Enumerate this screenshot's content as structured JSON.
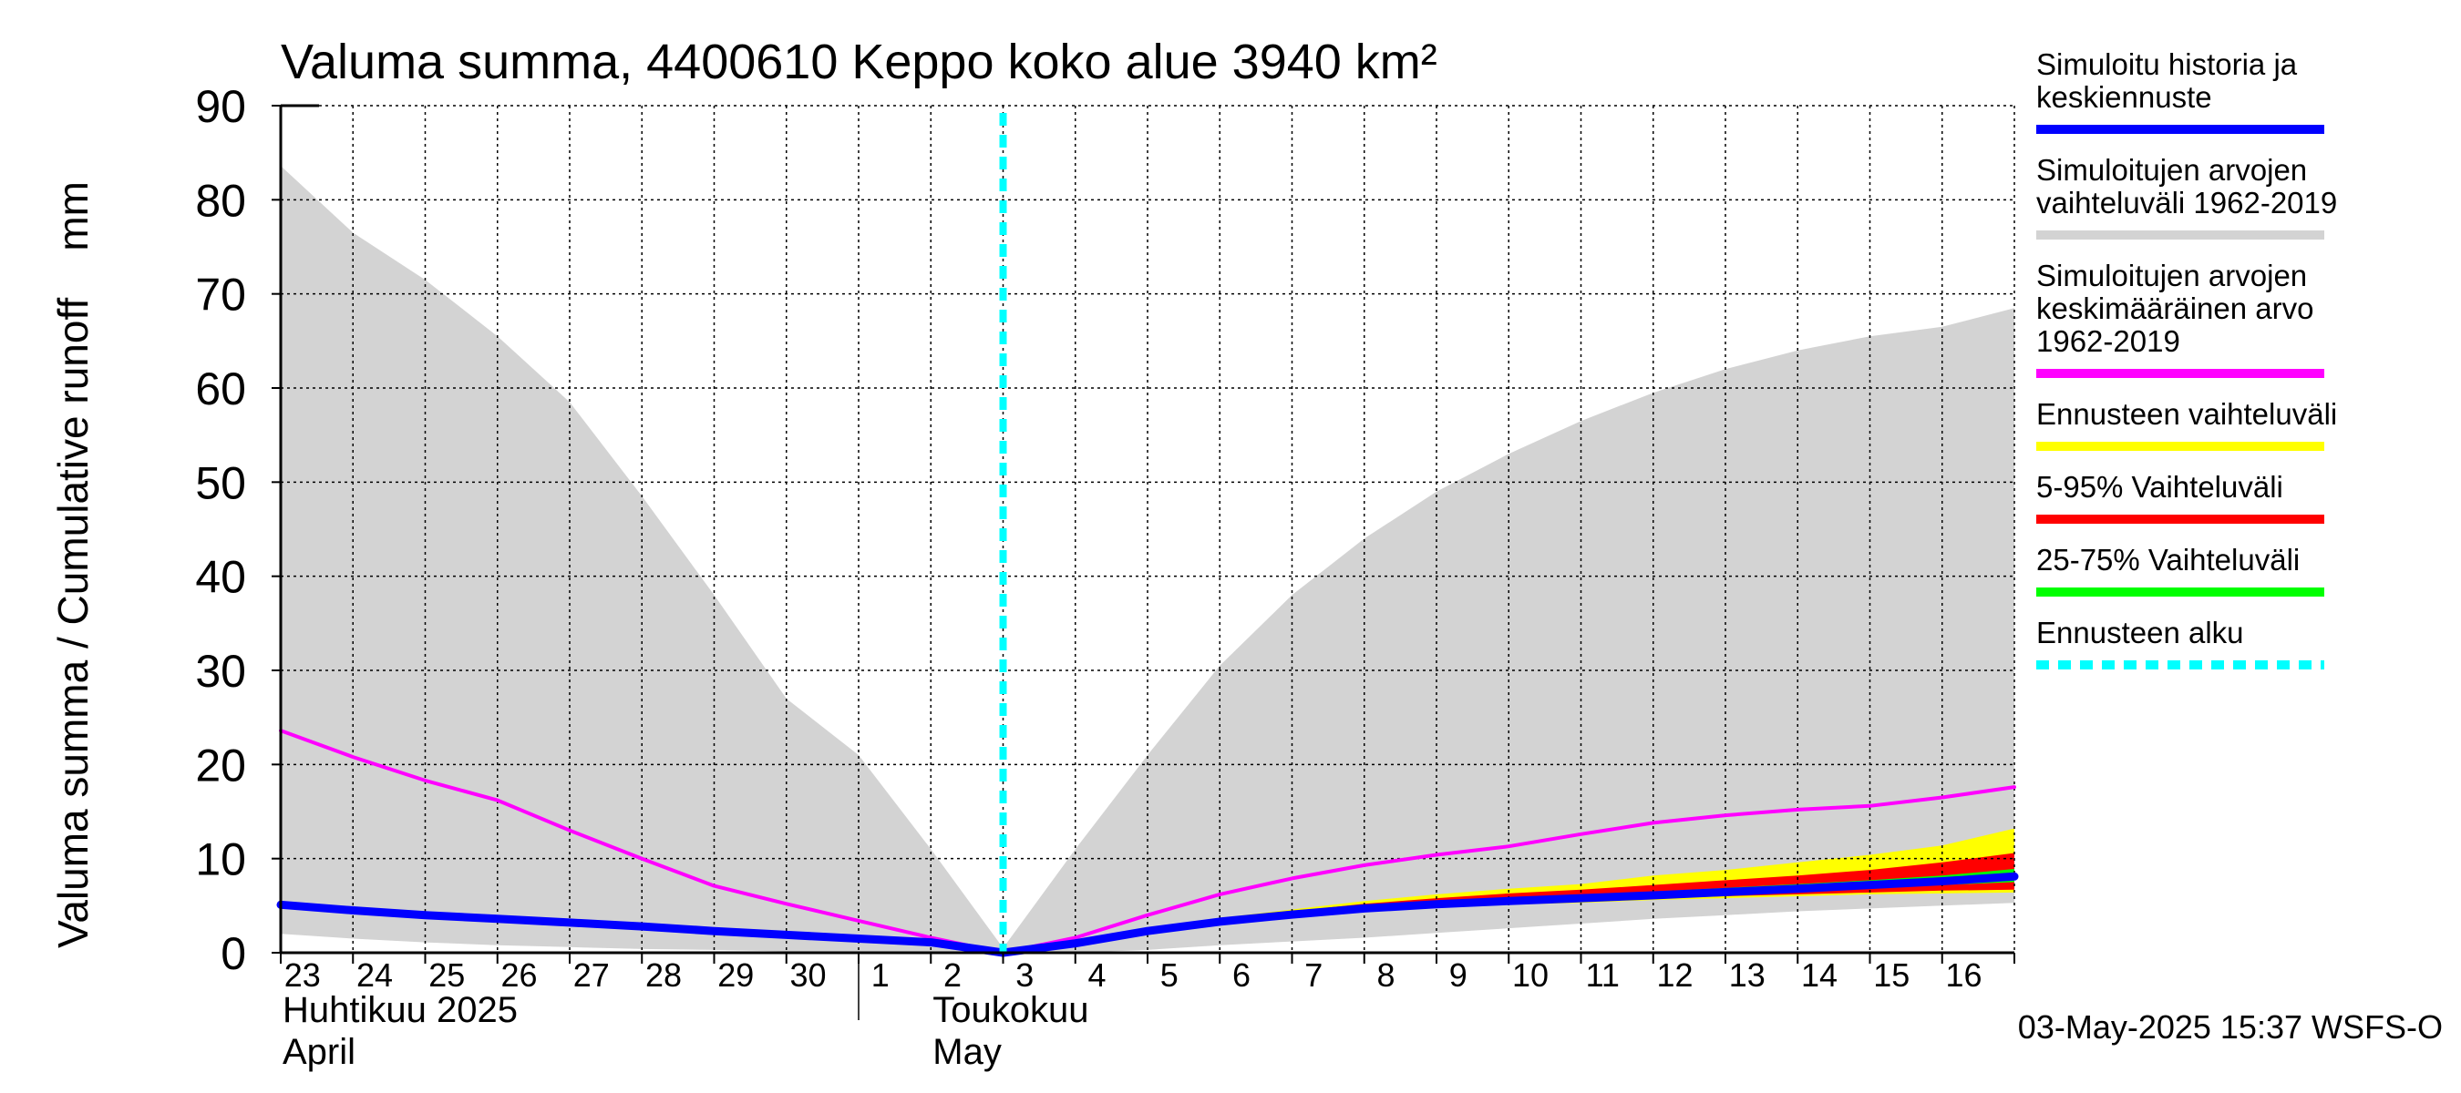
{
  "chart_data": {
    "type": "area",
    "title": "Valuma summa, 4400610 Keppo koko alue 3940 km²",
    "ylabel": "Valuma summa / Cumulative runoff    mm",
    "ylim": [
      0,
      90
    ],
    "yticks": [
      "0",
      "10",
      "20",
      "30",
      "40",
      "50",
      "60",
      "70",
      "80",
      "90"
    ],
    "xlim": [
      0,
      24
    ],
    "xticks": [
      "23",
      "24",
      "25",
      "26",
      "27",
      "28",
      "29",
      "30",
      "1",
      "2",
      "3",
      "4",
      "5",
      "6",
      "7",
      "8",
      "9",
      "10",
      "11",
      "12",
      "13",
      "14",
      "15",
      "16"
    ],
    "month_labels": [
      {
        "fi": "Huhtikuu  2025",
        "en": "April",
        "day_index": 0
      },
      {
        "fi": "Toukokuu",
        "en": "May",
        "day_index": 9
      }
    ],
    "month_separator_x": 8,
    "forecast_start_x": 10,
    "grid": true,
    "series": [
      {
        "name": "Simuloitujen arvojen vaihteluväli 1962-2019",
        "kind": "band",
        "color": "#d3d3d3",
        "x": [
          0,
          1,
          2,
          3,
          4,
          5,
          6,
          7,
          8,
          9,
          10,
          11,
          12,
          13,
          14,
          15,
          16,
          17,
          18,
          19,
          20,
          21,
          22,
          23,
          24
        ],
        "upper": [
          83.6,
          76.5,
          71.5,
          65.5,
          58.5,
          48.5,
          38,
          27,
          21,
          11,
          0.5,
          11,
          21,
          30.5,
          38,
          44,
          49,
          53,
          56.5,
          59.5,
          62,
          64,
          65.5,
          66.5,
          68.5
        ],
        "lower": [
          2,
          1.5,
          1.1,
          0.8,
          0.6,
          0.4,
          0.3,
          0.15,
          0.05,
          0.01,
          0,
          0,
          0.3,
          0.8,
          1.2,
          1.6,
          2.1,
          2.6,
          3.1,
          3.6,
          4,
          4.4,
          4.7,
          5,
          5.3
        ]
      },
      {
        "name": "Ennusteen vaihteluväli",
        "kind": "band",
        "color": "#ffff00",
        "x": [
          10,
          11,
          12,
          13,
          14,
          15,
          16,
          17,
          18,
          19,
          20,
          21,
          22,
          23,
          24
        ],
        "upper": [
          0,
          1.2,
          2.6,
          3.7,
          4.6,
          5.5,
          6.2,
          6.8,
          7.3,
          8.2,
          8.8,
          9.6,
          10.4,
          11.4,
          13.2
        ],
        "lower": [
          0,
          1,
          2.2,
          3.1,
          3.8,
          4.4,
          4.8,
          5.1,
          5.3,
          5.6,
          5.8,
          6,
          6.2,
          6.3,
          6.4
        ]
      },
      {
        "name": "5-95% Vaihteluväli",
        "kind": "band",
        "color": "#ff0000",
        "x": [
          10,
          11,
          12,
          13,
          14,
          15,
          16,
          17,
          18,
          19,
          20,
          21,
          22,
          23,
          24
        ],
        "upper": [
          0,
          1.15,
          2.5,
          3.55,
          4.4,
          5.2,
          5.8,
          6.3,
          6.7,
          7.2,
          7.7,
          8.2,
          8.8,
          9.6,
          10.6
        ],
        "lower": [
          0,
          1.05,
          2.3,
          3.25,
          3.9,
          4.55,
          5,
          5.3,
          5.5,
          5.8,
          6,
          6.2,
          6.4,
          6.6,
          6.7
        ]
      },
      {
        "name": "25-75% Vaihteluväli",
        "kind": "band",
        "color": "#00ff00",
        "x": [
          10,
          11,
          12,
          13,
          14,
          15,
          16,
          17,
          18,
          19,
          20,
          21,
          22,
          23,
          24
        ],
        "upper": [
          0,
          1.12,
          2.45,
          3.45,
          4.25,
          4.95,
          5.45,
          5.8,
          6.1,
          6.5,
          6.9,
          7.3,
          7.7,
          8.2,
          8.9
        ],
        "lower": [
          0,
          1.08,
          2.35,
          3.35,
          4.05,
          4.7,
          5.15,
          5.45,
          5.7,
          6,
          6.3,
          6.6,
          6.9,
          7.2,
          7.5
        ]
      },
      {
        "name": "Simuloitujen arvojen keskimääräinen arvo 1962-2019",
        "kind": "line",
        "color": "#ff00ff",
        "width": 4,
        "x": [
          0,
          1,
          2,
          3,
          4,
          5,
          6,
          7,
          8,
          9,
          10,
          11,
          12,
          13,
          14,
          15,
          16,
          17,
          18,
          19,
          20,
          21,
          22,
          23,
          24
        ],
        "values": [
          23.6,
          20.8,
          18.3,
          16.2,
          13,
          10,
          7.1,
          5.2,
          3.4,
          1.6,
          0,
          1.6,
          4,
          6.2,
          7.9,
          9.3,
          10.4,
          11.3,
          12.6,
          13.8,
          14.6,
          15.2,
          15.6,
          16.5,
          17.6
        ]
      },
      {
        "name": "Simuloitu historia ja keskiennuste",
        "kind": "line",
        "color": "#0000ff",
        "width": 9,
        "x": [
          0,
          1,
          2,
          3,
          4,
          5,
          6,
          7,
          8,
          9,
          10,
          11,
          12,
          13,
          14,
          15,
          16,
          17,
          18,
          19,
          20,
          21,
          22,
          23,
          24
        ],
        "values": [
          5.1,
          4.5,
          4,
          3.6,
          3.2,
          2.8,
          2.3,
          1.9,
          1.5,
          1.1,
          0,
          1,
          2.3,
          3.3,
          4.05,
          4.7,
          5.15,
          5.5,
          5.8,
          6.1,
          6.45,
          6.8,
          7.2,
          7.6,
          8.1
        ]
      }
    ],
    "legend": [
      {
        "label_lines": [
          "Simuloitu historia ja",
          "keskiennuste"
        ],
        "color": "#0000ff",
        "style": "solid"
      },
      {
        "label_lines": [
          "Simuloitujen arvojen",
          "vaihteluväli 1962-2019"
        ],
        "color": "#d3d3d3",
        "style": "solid"
      },
      {
        "label_lines": [
          "Simuloitujen arvojen",
          "keskimääräinen arvo",
          "   1962-2019"
        ],
        "color": "#ff00ff",
        "style": "solid"
      },
      {
        "label_lines": [
          "Ennusteen vaihteluväli"
        ],
        "color": "#ffff00",
        "style": "solid"
      },
      {
        "label_lines": [
          "5-95% Vaihteluväli"
        ],
        "color": "#ff0000",
        "style": "solid"
      },
      {
        "label_lines": [
          "25-75% Vaihteluväli"
        ],
        "color": "#00ff00",
        "style": "solid"
      },
      {
        "label_lines": [
          "Ennusteen alku"
        ],
        "color": "#00ffff",
        "style": "dashed"
      }
    ],
    "forecast_line_color": "#00ffff",
    "footer": "03-May-2025 15:37 WSFS-O"
  }
}
